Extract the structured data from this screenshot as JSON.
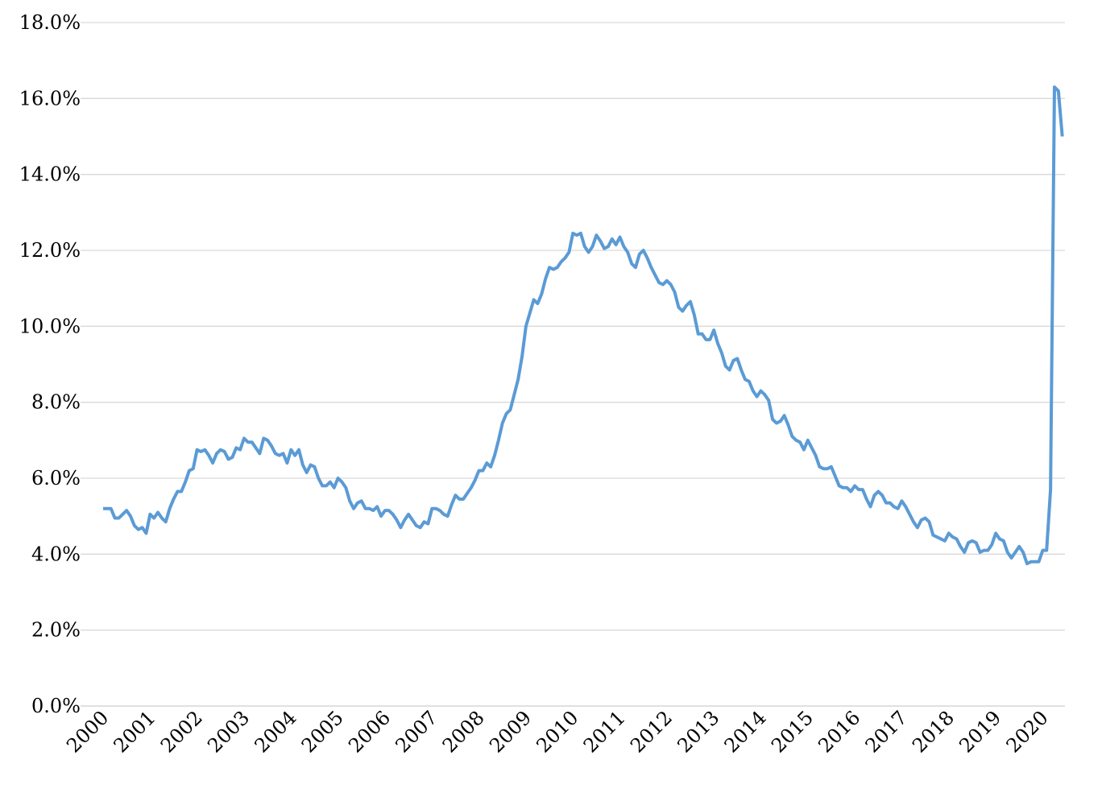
{
  "chart_data": {
    "type": "line",
    "categories": [
      "2000",
      null,
      null,
      null,
      null,
      null,
      null,
      null,
      null,
      null,
      null,
      null,
      "2001",
      null,
      null,
      null,
      null,
      null,
      null,
      null,
      null,
      null,
      null,
      null,
      "2002",
      null,
      null,
      null,
      null,
      null,
      null,
      null,
      null,
      null,
      null,
      null,
      "2003",
      null,
      null,
      null,
      null,
      null,
      null,
      null,
      null,
      null,
      null,
      null,
      "2004",
      null,
      null,
      null,
      null,
      null,
      null,
      null,
      null,
      null,
      null,
      null,
      "2005",
      null,
      null,
      null,
      null,
      null,
      null,
      null,
      null,
      null,
      null,
      null,
      "2006",
      null,
      null,
      null,
      null,
      null,
      null,
      null,
      null,
      null,
      null,
      null,
      "2007",
      null,
      null,
      null,
      null,
      null,
      null,
      null,
      null,
      null,
      null,
      null,
      "2008",
      null,
      null,
      null,
      null,
      null,
      null,
      null,
      null,
      null,
      null,
      null,
      "2009",
      null,
      null,
      null,
      null,
      null,
      null,
      null,
      null,
      null,
      null,
      null,
      "2010",
      null,
      null,
      null,
      null,
      null,
      null,
      null,
      null,
      null,
      null,
      null,
      "2011",
      null,
      null,
      null,
      null,
      null,
      null,
      null,
      null,
      null,
      null,
      null,
      "2012",
      null,
      null,
      null,
      null,
      null,
      null,
      null,
      null,
      null,
      null,
      null,
      "2013",
      null,
      null,
      null,
      null,
      null,
      null,
      null,
      null,
      null,
      null,
      null,
      "2014",
      null,
      null,
      null,
      null,
      null,
      null,
      null,
      null,
      null,
      null,
      null,
      "2015",
      null,
      null,
      null,
      null,
      null,
      null,
      null,
      null,
      null,
      null,
      null,
      "2016",
      null,
      null,
      null,
      null,
      null,
      null,
      null,
      null,
      null,
      null,
      null,
      "2017",
      null,
      null,
      null,
      null,
      null,
      null,
      null,
      null,
      null,
      null,
      null,
      "2018",
      null,
      null,
      null,
      null,
      null,
      null,
      null,
      null,
      null,
      null,
      null,
      "2019",
      null,
      null,
      null,
      null,
      null,
      null,
      null,
      null,
      null,
      null,
      null,
      "2020",
      null,
      null,
      null,
      null,
      null
    ],
    "values": [
      5.2,
      5.2,
      5.2,
      4.95,
      4.95,
      5.05,
      5.15,
      5.0,
      4.75,
      4.65,
      4.7,
      4.55,
      5.05,
      4.95,
      5.1,
      4.95,
      4.85,
      5.2,
      5.45,
      5.65,
      5.65,
      5.9,
      6.2,
      6.25,
      6.75,
      6.7,
      6.75,
      6.6,
      6.4,
      6.65,
      6.75,
      6.7,
      6.5,
      6.55,
      6.8,
      6.75,
      7.05,
      6.95,
      6.95,
      6.8,
      6.65,
      7.05,
      7.0,
      6.85,
      6.65,
      6.6,
      6.65,
      6.4,
      6.75,
      6.6,
      6.75,
      6.35,
      6.15,
      6.35,
      6.3,
      6.0,
      5.8,
      5.8,
      5.9,
      5.75,
      6.0,
      5.9,
      5.75,
      5.4,
      5.2,
      5.35,
      5.4,
      5.2,
      5.2,
      5.15,
      5.25,
      5.0,
      5.15,
      5.15,
      5.05,
      4.9,
      4.7,
      4.9,
      5.05,
      4.9,
      4.75,
      4.7,
      4.85,
      4.8,
      5.2,
      5.2,
      5.15,
      5.05,
      5.0,
      5.3,
      5.55,
      5.45,
      5.45,
      5.6,
      5.75,
      5.95,
      6.2,
      6.2,
      6.4,
      6.3,
      6.6,
      7.0,
      7.45,
      7.7,
      7.8,
      8.2,
      8.6,
      9.2,
      10.0,
      10.35,
      10.7,
      10.6,
      10.85,
      11.25,
      11.55,
      11.5,
      11.55,
      11.7,
      11.8,
      11.95,
      12.45,
      12.4,
      12.45,
      12.1,
      11.95,
      12.1,
      12.4,
      12.25,
      12.05,
      12.1,
      12.3,
      12.15,
      12.35,
      12.1,
      11.95,
      11.65,
      11.55,
      11.9,
      12.0,
      11.8,
      11.55,
      11.35,
      11.15,
      11.1,
      11.2,
      11.1,
      10.9,
      10.5,
      10.4,
      10.55,
      10.65,
      10.3,
      9.8,
      9.8,
      9.65,
      9.65,
      9.9,
      9.55,
      9.3,
      8.95,
      8.85,
      9.1,
      9.15,
      8.85,
      8.6,
      8.55,
      8.3,
      8.15,
      8.3,
      8.2,
      8.05,
      7.55,
      7.45,
      7.5,
      7.65,
      7.4,
      7.1,
      7.0,
      6.95,
      6.75,
      7.0,
      6.8,
      6.6,
      6.3,
      6.25,
      6.25,
      6.3,
      6.05,
      5.8,
      5.75,
      5.75,
      5.65,
      5.8,
      5.7,
      5.7,
      5.45,
      5.25,
      5.55,
      5.65,
      5.55,
      5.35,
      5.35,
      5.25,
      5.2,
      5.4,
      5.25,
      5.05,
      4.85,
      4.7,
      4.9,
      4.95,
      4.85,
      4.5,
      4.45,
      4.4,
      4.35,
      4.55,
      4.45,
      4.4,
      4.2,
      4.05,
      4.3,
      4.35,
      4.3,
      4.05,
      4.1,
      4.1,
      4.25,
      4.55,
      4.4,
      4.35,
      4.05,
      3.9,
      4.05,
      4.2,
      4.05,
      3.75,
      3.8,
      3.8,
      3.8,
      4.1,
      4.1,
      5.7,
      16.3,
      16.2,
      15.0
    ],
    "color": "#5b9bd5",
    "ylim": [
      0,
      18
    ],
    "yticks": [
      {
        "value": 0,
        "label": "0.0%"
      },
      {
        "value": 2,
        "label": "2.0%"
      },
      {
        "value": 4,
        "label": "4.0%"
      },
      {
        "value": 6,
        "label": "6.0%"
      },
      {
        "value": 8,
        "label": "8.0%"
      },
      {
        "value": 10,
        "label": "10.0%"
      },
      {
        "value": 12,
        "label": "12.0%"
      },
      {
        "value": 14,
        "label": "14.0%"
      },
      {
        "value": 16,
        "label": "16.0%"
      },
      {
        "value": 18,
        "label": "18.0%"
      }
    ],
    "grid": true
  }
}
